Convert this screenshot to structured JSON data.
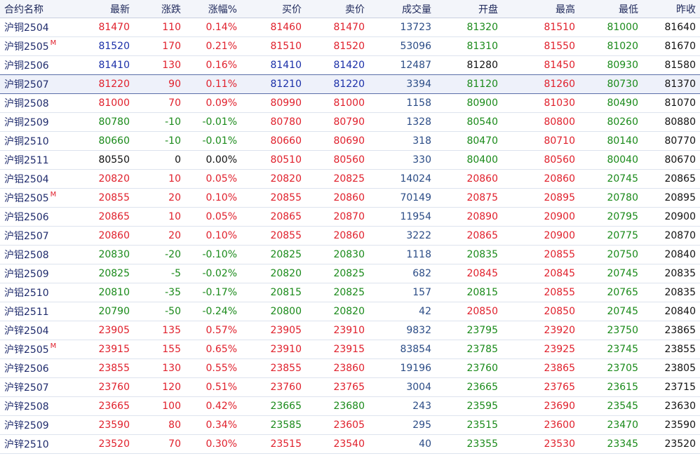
{
  "columns": [
    "合约名称",
    "最新",
    "涨跌",
    "涨幅%",
    "买价",
    "卖价",
    "成交量",
    "开盘",
    "最高",
    "最低",
    "昨收"
  ],
  "colors": {
    "up": "#e0202c",
    "down": "#1a8a1a",
    "flat": "#111111",
    "volume": "#2b4c86",
    "header_text": "#202a5c"
  },
  "selected_row": 3,
  "rows": [
    {
      "name": "沪铜2504",
      "flag": "",
      "last": "81470",
      "change": "110",
      "pct": "0.14%",
      "bid": "81460",
      "ask": "81470",
      "vol": "13723",
      "open": "81320",
      "high": "81510",
      "low": "81000",
      "prev": "81640",
      "c": {
        "last": "up",
        "change": "up",
        "pct": "up",
        "bid": "up",
        "ask": "up",
        "open": "down",
        "high": "up",
        "low": "down"
      }
    },
    {
      "name": "沪铜2505",
      "flag": "M",
      "last": "81520",
      "change": "170",
      "pct": "0.21%",
      "bid": "81510",
      "ask": "81520",
      "vol": "53096",
      "open": "81310",
      "high": "81550",
      "low": "81020",
      "prev": "81670",
      "c": {
        "last": "blue",
        "change": "up",
        "pct": "up",
        "bid": "up",
        "ask": "up",
        "open": "down",
        "high": "up",
        "low": "down"
      }
    },
    {
      "name": "沪铜2506",
      "flag": "",
      "last": "81410",
      "change": "130",
      "pct": "0.16%",
      "bid": "81410",
      "ask": "81420",
      "vol": "12487",
      "open": "81280",
      "high": "81450",
      "low": "80930",
      "prev": "81580",
      "c": {
        "last": "blue",
        "change": "up",
        "pct": "up",
        "bid": "blue",
        "ask": "blue",
        "open": "flat",
        "high": "up",
        "low": "down"
      }
    },
    {
      "name": "沪铜2507",
      "flag": "",
      "last": "81220",
      "change": "90",
      "pct": "0.11%",
      "bid": "81210",
      "ask": "81220",
      "vol": "3394",
      "open": "81120",
      "high": "81260",
      "low": "80730",
      "prev": "81370",
      "c": {
        "last": "up",
        "change": "up",
        "pct": "up",
        "bid": "blue",
        "ask": "blue",
        "open": "down",
        "high": "up",
        "low": "down"
      }
    },
    {
      "name": "沪铜2508",
      "flag": "",
      "last": "81000",
      "change": "70",
      "pct": "0.09%",
      "bid": "80990",
      "ask": "81000",
      "vol": "1158",
      "open": "80900",
      "high": "81030",
      "low": "80490",
      "prev": "81070",
      "c": {
        "last": "up",
        "change": "up",
        "pct": "up",
        "bid": "up",
        "ask": "up",
        "open": "down",
        "high": "up",
        "low": "down"
      }
    },
    {
      "name": "沪铜2509",
      "flag": "",
      "last": "80780",
      "change": "-10",
      "pct": "-0.01%",
      "bid": "80780",
      "ask": "80790",
      "vol": "1328",
      "open": "80540",
      "high": "80800",
      "low": "80260",
      "prev": "80880",
      "c": {
        "last": "down",
        "change": "down",
        "pct": "down",
        "bid": "up",
        "ask": "up",
        "open": "down",
        "high": "up",
        "low": "down"
      }
    },
    {
      "name": "沪铜2510",
      "flag": "",
      "last": "80660",
      "change": "-10",
      "pct": "-0.01%",
      "bid": "80660",
      "ask": "80690",
      "vol": "318",
      "open": "80470",
      "high": "80710",
      "low": "80140",
      "prev": "80770",
      "c": {
        "last": "down",
        "change": "down",
        "pct": "down",
        "bid": "up",
        "ask": "up",
        "open": "down",
        "high": "up",
        "low": "down"
      }
    },
    {
      "name": "沪铜2511",
      "flag": "",
      "last": "80550",
      "change": "0",
      "pct": "0.00%",
      "bid": "80510",
      "ask": "80560",
      "vol": "330",
      "open": "80400",
      "high": "80560",
      "low": "80040",
      "prev": "80670",
      "c": {
        "last": "flat",
        "change": "flat",
        "pct": "flat",
        "bid": "up",
        "ask": "up",
        "open": "down",
        "high": "up",
        "low": "down"
      }
    },
    {
      "name": "沪铝2504",
      "flag": "",
      "last": "20820",
      "change": "10",
      "pct": "0.05%",
      "bid": "20820",
      "ask": "20825",
      "vol": "14024",
      "open": "20860",
      "high": "20860",
      "low": "20745",
      "prev": "20865",
      "c": {
        "last": "up",
        "change": "up",
        "pct": "up",
        "bid": "up",
        "ask": "up",
        "open": "up",
        "high": "up",
        "low": "down"
      }
    },
    {
      "name": "沪铝2505",
      "flag": "M",
      "last": "20855",
      "change": "20",
      "pct": "0.10%",
      "bid": "20855",
      "ask": "20860",
      "vol": "70149",
      "open": "20875",
      "high": "20895",
      "low": "20780",
      "prev": "20895",
      "c": {
        "last": "up",
        "change": "up",
        "pct": "up",
        "bid": "up",
        "ask": "up",
        "open": "up",
        "high": "up",
        "low": "down"
      }
    },
    {
      "name": "沪铝2506",
      "flag": "",
      "last": "20865",
      "change": "10",
      "pct": "0.05%",
      "bid": "20865",
      "ask": "20870",
      "vol": "11954",
      "open": "20890",
      "high": "20900",
      "low": "20795",
      "prev": "20900",
      "c": {
        "last": "up",
        "change": "up",
        "pct": "up",
        "bid": "up",
        "ask": "up",
        "open": "up",
        "high": "up",
        "low": "down"
      }
    },
    {
      "name": "沪铝2507",
      "flag": "",
      "last": "20860",
      "change": "20",
      "pct": "0.10%",
      "bid": "20855",
      "ask": "20860",
      "vol": "3222",
      "open": "20865",
      "high": "20900",
      "low": "20775",
      "prev": "20870",
      "c": {
        "last": "up",
        "change": "up",
        "pct": "up",
        "bid": "up",
        "ask": "up",
        "open": "up",
        "high": "up",
        "low": "down"
      }
    },
    {
      "name": "沪铝2508",
      "flag": "",
      "last": "20830",
      "change": "-20",
      "pct": "-0.10%",
      "bid": "20825",
      "ask": "20830",
      "vol": "1118",
      "open": "20835",
      "high": "20855",
      "low": "20750",
      "prev": "20840",
      "c": {
        "last": "down",
        "change": "down",
        "pct": "down",
        "bid": "down",
        "ask": "down",
        "open": "down",
        "high": "up",
        "low": "down"
      }
    },
    {
      "name": "沪铝2509",
      "flag": "",
      "last": "20825",
      "change": "-5",
      "pct": "-0.02%",
      "bid": "20820",
      "ask": "20825",
      "vol": "682",
      "open": "20845",
      "high": "20845",
      "low": "20745",
      "prev": "20835",
      "c": {
        "last": "down",
        "change": "down",
        "pct": "down",
        "bid": "down",
        "ask": "down",
        "open": "up",
        "high": "up",
        "low": "down"
      }
    },
    {
      "name": "沪铝2510",
      "flag": "",
      "last": "20810",
      "change": "-35",
      "pct": "-0.17%",
      "bid": "20815",
      "ask": "20825",
      "vol": "157",
      "open": "20815",
      "high": "20855",
      "low": "20765",
      "prev": "20835",
      "c": {
        "last": "down",
        "change": "down",
        "pct": "down",
        "bid": "down",
        "ask": "down",
        "open": "down",
        "high": "up",
        "low": "down"
      }
    },
    {
      "name": "沪铝2511",
      "flag": "",
      "last": "20790",
      "change": "-50",
      "pct": "-0.24%",
      "bid": "20800",
      "ask": "20820",
      "vol": "42",
      "open": "20850",
      "high": "20850",
      "low": "20745",
      "prev": "20840",
      "c": {
        "last": "down",
        "change": "down",
        "pct": "down",
        "bid": "down",
        "ask": "down",
        "open": "up",
        "high": "up",
        "low": "down"
      }
    },
    {
      "name": "沪锌2504",
      "flag": "",
      "last": "23905",
      "change": "135",
      "pct": "0.57%",
      "bid": "23905",
      "ask": "23910",
      "vol": "9832",
      "open": "23795",
      "high": "23920",
      "low": "23750",
      "prev": "23865",
      "c": {
        "last": "up",
        "change": "up",
        "pct": "up",
        "bid": "up",
        "ask": "up",
        "open": "down",
        "high": "up",
        "low": "down"
      }
    },
    {
      "name": "沪锌2505",
      "flag": "M",
      "last": "23915",
      "change": "155",
      "pct": "0.65%",
      "bid": "23910",
      "ask": "23915",
      "vol": "83854",
      "open": "23785",
      "high": "23925",
      "low": "23745",
      "prev": "23855",
      "c": {
        "last": "up",
        "change": "up",
        "pct": "up",
        "bid": "up",
        "ask": "up",
        "open": "down",
        "high": "up",
        "low": "down"
      }
    },
    {
      "name": "沪锌2506",
      "flag": "",
      "last": "23855",
      "change": "130",
      "pct": "0.55%",
      "bid": "23855",
      "ask": "23860",
      "vol": "19196",
      "open": "23760",
      "high": "23865",
      "low": "23705",
      "prev": "23805",
      "c": {
        "last": "up",
        "change": "up",
        "pct": "up",
        "bid": "up",
        "ask": "up",
        "open": "down",
        "high": "up",
        "low": "down"
      }
    },
    {
      "name": "沪锌2507",
      "flag": "",
      "last": "23760",
      "change": "120",
      "pct": "0.51%",
      "bid": "23760",
      "ask": "23765",
      "vol": "3004",
      "open": "23665",
      "high": "23765",
      "low": "23615",
      "prev": "23715",
      "c": {
        "last": "up",
        "change": "up",
        "pct": "up",
        "bid": "up",
        "ask": "up",
        "open": "down",
        "high": "up",
        "low": "down"
      }
    },
    {
      "name": "沪锌2508",
      "flag": "",
      "last": "23665",
      "change": "100",
      "pct": "0.42%",
      "bid": "23665",
      "ask": "23680",
      "vol": "243",
      "open": "23595",
      "high": "23690",
      "low": "23545",
      "prev": "23630",
      "c": {
        "last": "up",
        "change": "up",
        "pct": "up",
        "bid": "down",
        "ask": "down",
        "open": "down",
        "high": "up",
        "low": "down"
      }
    },
    {
      "name": "沪锌2509",
      "flag": "",
      "last": "23590",
      "change": "80",
      "pct": "0.34%",
      "bid": "23585",
      "ask": "23605",
      "vol": "295",
      "open": "23515",
      "high": "23600",
      "low": "23470",
      "prev": "23590",
      "c": {
        "last": "up",
        "change": "up",
        "pct": "up",
        "bid": "down",
        "ask": "up",
        "open": "down",
        "high": "up",
        "low": "down"
      }
    },
    {
      "name": "沪锌2510",
      "flag": "",
      "last": "23520",
      "change": "70",
      "pct": "0.30%",
      "bid": "23515",
      "ask": "23540",
      "vol": "40",
      "open": "23355",
      "high": "23530",
      "low": "23345",
      "prev": "23520",
      "c": {
        "last": "up",
        "change": "up",
        "pct": "up",
        "bid": "up",
        "ask": "up",
        "open": "down",
        "high": "up",
        "low": "down"
      }
    }
  ]
}
